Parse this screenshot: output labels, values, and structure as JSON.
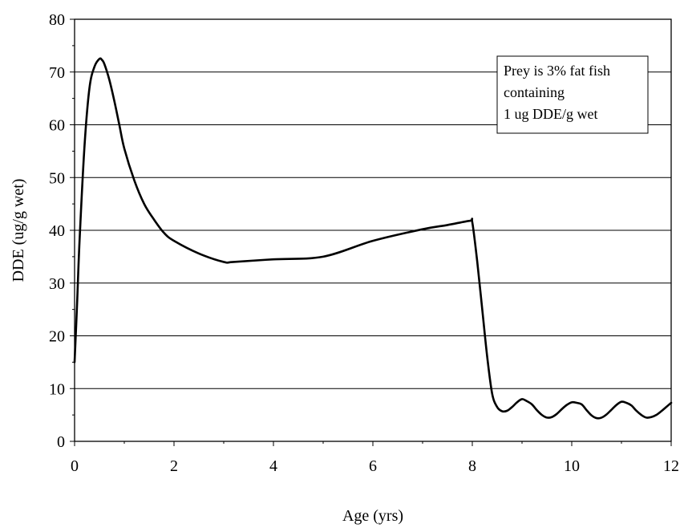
{
  "chart_data": {
    "type": "line",
    "title": "",
    "xlabel": "Age (yrs)",
    "ylabel": "DDE (ug/g wet)",
    "xlim": [
      0,
      12
    ],
    "ylim": [
      0,
      80
    ],
    "x_ticks": [
      0,
      2,
      4,
      6,
      8,
      10,
      12
    ],
    "x_tick_labels": [
      "0",
      "2",
      "4",
      "6",
      "8",
      "10",
      "12"
    ],
    "y_ticks": [
      0,
      10,
      20,
      30,
      40,
      50,
      60,
      70,
      80
    ],
    "y_tick_labels": [
      "0",
      "10",
      "20",
      "30",
      "40",
      "50",
      "60",
      "70",
      "80"
    ],
    "grid": "horizontal",
    "legend": "none",
    "annotation": {
      "lines": [
        "Prey is 3% fat fish",
        "containing",
        "1 ug DDE/g wet"
      ],
      "placement": "top-right"
    },
    "series": [
      {
        "color": "#000000",
        "x": [
          0,
          0.05,
          0.1,
          0.2,
          0.3,
          0.4,
          0.5,
          0.55,
          0.6,
          0.7,
          0.8,
          0.9,
          1.0,
          1.2,
          1.4,
          1.6,
          1.8,
          2.0,
          2.5,
          3.0,
          3.2,
          4.0,
          5.0,
          6.0,
          7.0,
          7.5,
          7.95,
          8.0,
          8.1,
          8.2,
          8.3,
          8.4,
          8.5,
          8.6,
          8.7,
          8.8,
          8.9,
          9.0,
          9.1,
          9.2,
          9.3,
          9.4,
          9.5,
          9.6,
          9.7,
          9.8,
          9.9,
          10.0,
          10.1,
          10.2,
          10.3,
          10.4,
          10.5,
          10.6,
          10.7,
          10.8,
          10.9,
          11.0,
          11.1,
          11.2,
          11.3,
          11.4,
          11.5,
          11.6,
          11.7,
          11.8,
          11.9,
          12.0
        ],
        "y": [
          15,
          26,
          38,
          56,
          67,
          71,
          72.5,
          72.3,
          71.5,
          68.5,
          64.5,
          60,
          55.5,
          49.5,
          45,
          42,
          39.5,
          38,
          35.6,
          34,
          34,
          34.5,
          35,
          38,
          40.2,
          41,
          41.8,
          41.5,
          34,
          25,
          16,
          9,
          6.5,
          5.7,
          5.8,
          6.5,
          7.4,
          8,
          7.6,
          7,
          5.9,
          5,
          4.5,
          4.6,
          5.2,
          6.1,
          6.9,
          7.4,
          7.3,
          7,
          5.9,
          4.9,
          4.4,
          4.5,
          5.1,
          6,
          6.9,
          7.5,
          7.3,
          6.8,
          5.8,
          5,
          4.5,
          4.6,
          5,
          5.7,
          6.5,
          7.3
        ]
      }
    ]
  }
}
